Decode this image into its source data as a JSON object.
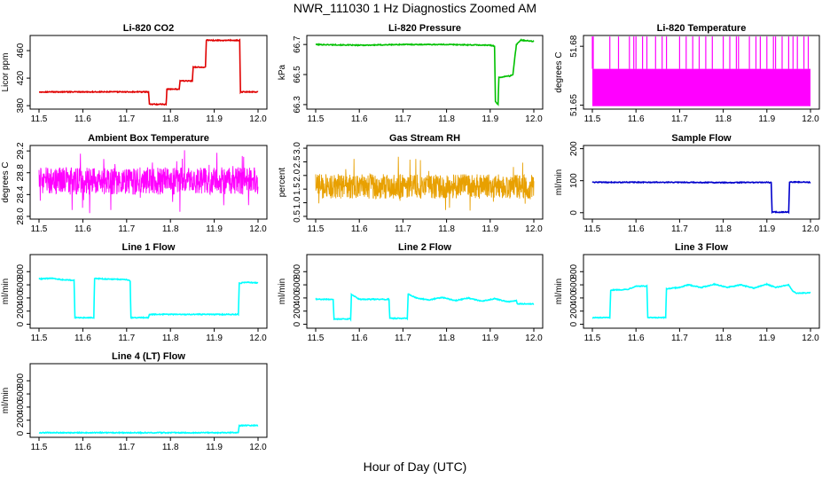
{
  "title": "NWR_111030  1 Hz Diagnostics Zoomed AM",
  "xlabel": "Hour of Day (UTC)",
  "chart_data": [
    {
      "type": "line",
      "title": "Li-820 CO2",
      "ylabel": "Licor ppm",
      "color": "#e00000",
      "xlim": [
        11.5,
        12.0
      ],
      "xticks": [
        "11.5",
        "11.6",
        "11.7",
        "11.8",
        "11.9",
        "12.0"
      ],
      "ylim": [
        375,
        482
      ],
      "yticks": [
        "380",
        "420",
        "460"
      ],
      "ytick_values": [
        380,
        420,
        460
      ],
      "series": [
        {
          "x": [
            11.5,
            11.75,
            11.752,
            11.79,
            11.792,
            11.82,
            11.822,
            11.85,
            11.852,
            11.88,
            11.882,
            11.958,
            11.96,
            12.0
          ],
          "y": [
            400,
            400,
            382,
            382,
            404,
            404,
            416,
            416,
            436,
            436,
            475,
            475,
            400,
            400
          ]
        }
      ]
    },
    {
      "type": "line",
      "title": "Li-820 Pressure",
      "ylabel": "kPa",
      "color": "#00c000",
      "xlim": [
        11.5,
        12.0
      ],
      "xticks": [
        "11.5",
        "11.6",
        "11.7",
        "11.8",
        "11.9",
        "12.0"
      ],
      "ylim": [
        66.27,
        66.76
      ],
      "yticks": [
        "66.3",
        "66.5",
        "66.7"
      ],
      "ytick_values": [
        66.3,
        66.5,
        66.7
      ],
      "series": [
        {
          "x": [
            11.5,
            11.6,
            11.7,
            11.8,
            11.9,
            11.91,
            11.912,
            11.918,
            11.92,
            11.94,
            11.945,
            11.952,
            11.96,
            11.97,
            12.0
          ],
          "y": [
            66.7,
            66.695,
            66.7,
            66.7,
            66.695,
            66.69,
            66.32,
            66.3,
            66.48,
            66.49,
            66.49,
            66.5,
            66.7,
            66.73,
            66.72
          ]
        }
      ]
    },
    {
      "type": "line",
      "title": "Li-820 Temperature",
      "ylabel": "degrees C",
      "color": "#ff00ff",
      "xlim": [
        11.5,
        12.0
      ],
      "xticks": [
        "11.5",
        "11.6",
        "11.7",
        "11.8",
        "11.9",
        "12.0"
      ],
      "ylim": [
        51.648,
        51.6855
      ],
      "yticks": [
        "51.65",
        "51.68"
      ],
      "ytick_values": [
        51.65,
        51.68
      ],
      "series": [
        {
          "noise_band": [
            51.6495,
            51.6685
          ],
          "spike_top": 51.685,
          "spike_x": [
            11.5,
            11.502,
            11.54,
            11.56,
            11.585,
            11.595,
            11.6,
            11.615,
            11.625,
            11.645,
            11.66,
            11.67,
            11.7,
            11.715,
            11.73,
            11.745,
            11.76,
            11.775,
            11.8,
            11.815,
            11.83,
            11.835,
            11.86,
            11.875,
            11.885,
            11.9,
            11.915,
            11.92,
            11.935,
            11.95,
            11.96,
            11.97,
            11.985,
            11.995
          ]
        }
      ]
    },
    {
      "type": "line",
      "title": "Ambient Box Temperature",
      "ylabel": "degrees C",
      "color": "#ff00ff",
      "xlim": [
        11.5,
        12.0
      ],
      "xticks": [
        "11.5",
        "11.6",
        "11.7",
        "11.8",
        "11.9",
        "12.0"
      ],
      "ylim": [
        27.95,
        29.3
      ],
      "yticks": [
        "28.0",
        "28.4",
        "28.8",
        "29.2"
      ],
      "ytick_values": [
        28.0,
        28.4,
        28.8,
        29.2
      ],
      "series": [
        {
          "noise_center": 28.65,
          "noise_amp": 0.25,
          "spike_amp": 0.6
        }
      ]
    },
    {
      "type": "line",
      "title": "Gas Stream RH",
      "ylabel": "percent",
      "color": "#e8a000",
      "xlim": [
        11.5,
        12.0
      ],
      "xticks": [
        "11.5",
        "11.6",
        "11.7",
        "11.8",
        "11.9",
        "12.0"
      ],
      "ylim": [
        0.4,
        3.1
      ],
      "yticks": [
        "0.5",
        "1.0",
        "1.5",
        "2.0",
        "2.5",
        "3.0"
      ],
      "ytick_values": [
        0.5,
        1.0,
        1.5,
        2.0,
        2.5,
        3.0
      ],
      "series": [
        {
          "noise_center": 1.6,
          "noise_amp": 0.45,
          "spike_amp": 1.1
        }
      ]
    },
    {
      "type": "line",
      "title": "Sample Flow",
      "ylabel": "ml/min",
      "color": "#0000cc",
      "xlim": [
        11.5,
        12.0
      ],
      "xticks": [
        "11.5",
        "11.6",
        "11.7",
        "11.8",
        "11.9",
        "12.0"
      ],
      "ylim": [
        -20,
        210
      ],
      "yticks": [
        "0",
        "100",
        "200"
      ],
      "ytick_values": [
        0,
        100,
        200
      ],
      "series": [
        {
          "x": [
            11.5,
            11.6,
            11.7,
            11.8,
            11.9,
            11.91,
            11.912,
            11.95,
            11.952,
            11.96,
            12.0
          ],
          "y": [
            95,
            95,
            95,
            94,
            95,
            94,
            2,
            2,
            95,
            96,
            95
          ]
        }
      ]
    },
    {
      "type": "line",
      "title": "Line 1 Flow",
      "ylabel": "ml/min",
      "color": "#00ffff",
      "xlim": [
        11.5,
        12.0
      ],
      "xticks": [
        "11.5",
        "11.6",
        "11.7",
        "11.8",
        "11.9",
        "12.0"
      ],
      "ylim": [
        -60,
        1060
      ],
      "yticks": [
        "0",
        "200",
        "400",
        "600",
        "800"
      ],
      "ytick_values": [
        0,
        200,
        400,
        600,
        800
      ],
      "series": [
        {
          "x": [
            11.5,
            11.53,
            11.55,
            11.58,
            11.582,
            11.625,
            11.627,
            11.65,
            11.7,
            11.708,
            11.71,
            11.75,
            11.752,
            11.955,
            11.957,
            11.97,
            12.0
          ],
          "y": [
            690,
            700,
            680,
            670,
            100,
            100,
            700,
            690,
            680,
            660,
            100,
            100,
            150,
            150,
            620,
            640,
            630
          ]
        }
      ]
    },
    {
      "type": "line",
      "title": "Line 2 Flow",
      "ylabel": "ml/min",
      "color": "#00ffff",
      "xlim": [
        11.5,
        12.0
      ],
      "xticks": [
        "11.5",
        "11.6",
        "11.7",
        "11.8",
        "11.9",
        "12.0"
      ],
      "ylim": [
        -60,
        1060
      ],
      "yticks": [
        "0",
        "200",
        "400",
        "600",
        "800"
      ],
      "ytick_values": [
        0,
        200,
        400,
        600,
        800
      ],
      "series": [
        {
          "x": [
            11.5,
            11.54,
            11.542,
            11.58,
            11.582,
            11.6,
            11.668,
            11.67,
            11.71,
            11.712,
            11.73,
            11.76,
            11.79,
            11.82,
            11.85,
            11.88,
            11.91,
            11.94,
            11.96,
            11.962,
            12.0
          ],
          "y": [
            380,
            380,
            80,
            80,
            450,
            380,
            380,
            90,
            90,
            460,
            400,
            370,
            410,
            360,
            400,
            350,
            390,
            340,
            360,
            310,
            310
          ]
        }
      ]
    },
    {
      "type": "line",
      "title": "Line 3 Flow",
      "ylabel": "ml/min",
      "color": "#00ffff",
      "xlim": [
        11.5,
        12.0
      ],
      "xticks": [
        "11.5",
        "11.6",
        "11.7",
        "11.8",
        "11.9",
        "12.0"
      ],
      "ylim": [
        -60,
        1060
      ],
      "yticks": [
        "0",
        "200",
        "400",
        "600",
        "800"
      ],
      "ytick_values": [
        0,
        200,
        400,
        600,
        800
      ],
      "series": [
        {
          "x": [
            11.5,
            11.54,
            11.542,
            11.58,
            11.6,
            11.625,
            11.627,
            11.668,
            11.67,
            11.7,
            11.72,
            11.75,
            11.78,
            11.81,
            11.84,
            11.87,
            11.9,
            11.92,
            11.95,
            11.96,
            11.97,
            12.0
          ],
          "y": [
            100,
            100,
            520,
            530,
            580,
            580,
            100,
            100,
            540,
            560,
            600,
            560,
            610,
            560,
            600,
            550,
            610,
            560,
            600,
            500,
            470,
            480
          ]
        }
      ]
    },
    {
      "type": "line",
      "title": "Line 4 (LT) Flow",
      "ylabel": "ml/min",
      "color": "#00ffff",
      "xlim": [
        11.5,
        12.0
      ],
      "xticks": [
        "11.5",
        "11.6",
        "11.7",
        "11.8",
        "11.9",
        "12.0"
      ],
      "ylim": [
        -60,
        1060
      ],
      "yticks": [
        "0",
        "200",
        "400",
        "600",
        "800"
      ],
      "ytick_values": [
        0,
        200,
        400,
        600,
        800
      ],
      "series": [
        {
          "x": [
            11.5,
            11.6,
            11.7,
            11.8,
            11.9,
            11.955,
            11.957,
            12.0
          ],
          "y": [
            10,
            10,
            10,
            10,
            10,
            10,
            120,
            120
          ]
        }
      ]
    }
  ]
}
